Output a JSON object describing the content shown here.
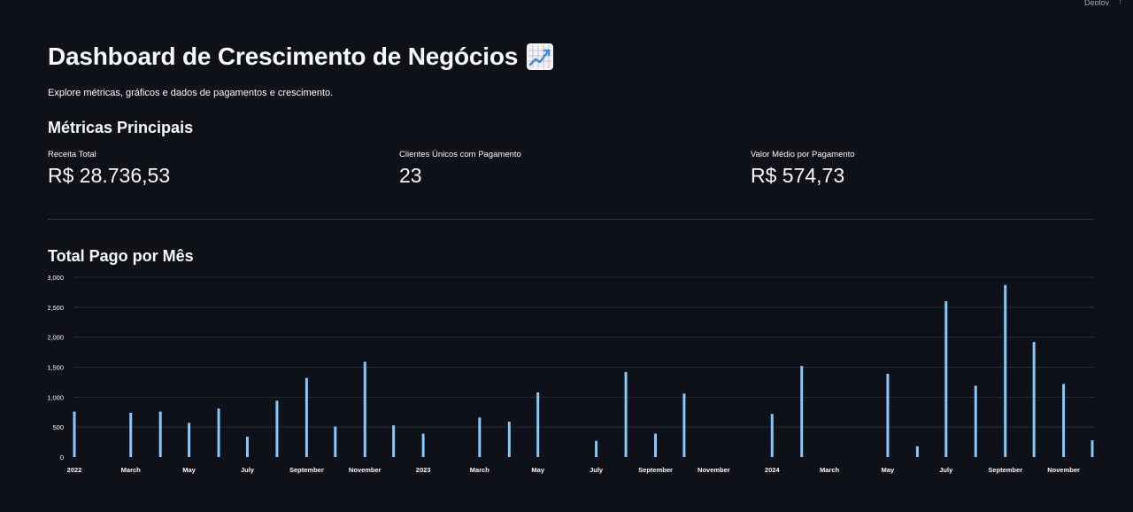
{
  "header": {
    "toolbar_items": [
      "Deploy",
      "⋮"
    ]
  },
  "page": {
    "title": "Dashboard de Crescimento de Negócios",
    "title_icon": "chart-increasing-icon",
    "subtitle": "Explore métricas, gráficos e dados de pagamentos e crescimento."
  },
  "metrics": {
    "header": "Métricas Principais",
    "items": [
      {
        "label": "Receita Total",
        "value": "R$ 28.736,53"
      },
      {
        "label": "Clientes Únicos com Pagamento",
        "value": "23"
      },
      {
        "label": "Valor Médio por Pagamento",
        "value": "R$ 574,73"
      }
    ]
  },
  "chart_section": {
    "header": "Total Pago por Mês"
  },
  "colors": {
    "background": "#0e1117",
    "bar": "#83c9ff",
    "gridline": "#262a33",
    "text": "#fafafa"
  },
  "chart_data": {
    "type": "bar",
    "title": "Total Pago por Mês",
    "xlabel": "",
    "ylabel": "",
    "x_range": [
      "2022-01-01",
      "2024-12-01"
    ],
    "ylim": [
      0,
      3000
    ],
    "yticks": [
      0,
      500,
      1000,
      1500,
      2000,
      2500,
      3000
    ],
    "ytick_labels": [
      "0",
      "500",
      "1,000",
      "1,500",
      "2,000",
      "2,500",
      "3,000"
    ],
    "xticks": [
      "2022-01",
      "2022-03",
      "2022-05",
      "2022-07",
      "2022-09",
      "2022-11",
      "2023-01",
      "2023-03",
      "2023-05",
      "2023-07",
      "2023-09",
      "2023-11",
      "2024-01",
      "2024-03",
      "2024-05",
      "2024-07",
      "2024-09",
      "2024-11"
    ],
    "xtick_labels": [
      "2022",
      "March",
      "May",
      "July",
      "September",
      "November",
      "2023",
      "March",
      "May",
      "July",
      "September",
      "November",
      "2024",
      "March",
      "May",
      "July",
      "September",
      "November"
    ],
    "grid": true,
    "legend": "none",
    "x": [
      "2022-01",
      "2022-03",
      "2022-04",
      "2022-05",
      "2022-06",
      "2022-07",
      "2022-08",
      "2022-09",
      "2022-10",
      "2022-11",
      "2022-12",
      "2023-01",
      "2023-03",
      "2023-04",
      "2023-05",
      "2023-07",
      "2023-08",
      "2023-09",
      "2023-10",
      "2024-01",
      "2024-02",
      "2024-05",
      "2024-06",
      "2024-07",
      "2024-08",
      "2024-09",
      "2024-10",
      "2024-11",
      "2024-12"
    ],
    "values": [
      760,
      740,
      760,
      570,
      810,
      340,
      940,
      1320,
      510,
      1590,
      530,
      390,
      660,
      590,
      1080,
      270,
      1420,
      390,
      1060,
      720,
      1520,
      1390,
      180,
      2600,
      1190,
      2870,
      1920,
      1220,
      280
    ]
  }
}
